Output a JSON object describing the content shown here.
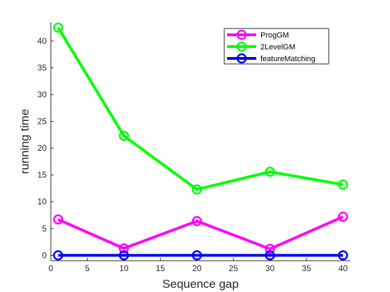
{
  "chart_data": {
    "type": "line",
    "title": "",
    "xlabel": "Sequence gap",
    "ylabel": "running time",
    "x": [
      1,
      10,
      20,
      30,
      40
    ],
    "xlim": [
      0,
      41
    ],
    "ylim": [
      -1,
      43.5
    ],
    "xticks": [
      0,
      5,
      10,
      15,
      20,
      25,
      30,
      35,
      40
    ],
    "yticks": [
      0,
      5,
      10,
      15,
      20,
      25,
      30,
      35,
      40
    ],
    "grid": false,
    "legend_position": "top-right",
    "marker": "circle",
    "series": [
      {
        "name": "ProgGM",
        "color": "#ff00ff",
        "values": [
          6.7,
          1.3,
          6.4,
          1.2,
          7.2
        ]
      },
      {
        "name": "2LevelGM",
        "color": "#00ff00",
        "values": [
          42.5,
          22.3,
          12.3,
          15.6,
          13.2
        ]
      },
      {
        "name": "featureMatching",
        "color": "#0000ff",
        "values": [
          0.0,
          0.0,
          0.0,
          0.0,
          0.0
        ]
      }
    ]
  }
}
